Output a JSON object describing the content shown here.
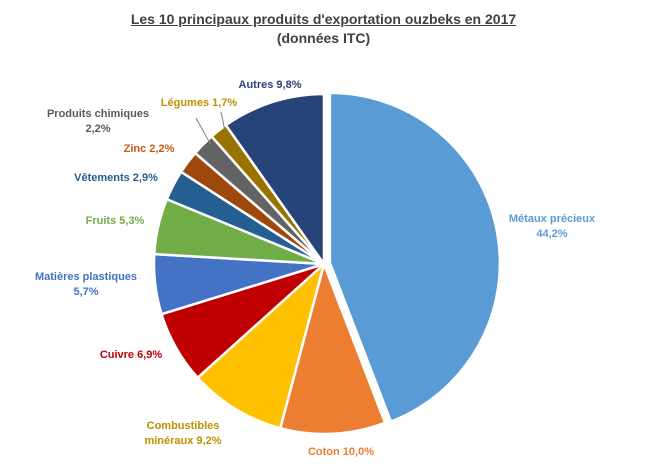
{
  "chart_data": {
    "type": "pie",
    "title": "Les 10 principaux produits d'exportation ouzbeks en 2017",
    "subtitle": "(données ITC)",
    "slices": [
      {
        "label": "Métaux précieux",
        "value": 44.2,
        "display": "44,2%",
        "color": "#5B9BD5",
        "text_color": "#5B9BD5"
      },
      {
        "label": "Coton",
        "value": 10.0,
        "display": "10,0%",
        "color": "#ED7D31",
        "text_color": "#ED7D31"
      },
      {
        "label": "Combustibles minéraux",
        "value": 9.2,
        "display": "9,2%",
        "color": "#FFC000",
        "text_color": "#BF9000"
      },
      {
        "label": "Cuivre",
        "value": 6.9,
        "display": "6,9%",
        "color": "#C00000",
        "text_color": "#C00000"
      },
      {
        "label": "Matières plastiques",
        "value": 5.7,
        "display": "5,7%",
        "color": "#4472C4",
        "text_color": "#4472C4"
      },
      {
        "label": "Fruits",
        "value": 5.3,
        "display": "5,3%",
        "color": "#70AD47",
        "text_color": "#70AD47"
      },
      {
        "label": "Vêtements",
        "value": 2.9,
        "display": "2,9%",
        "color": "#255E91",
        "text_color": "#255E91"
      },
      {
        "label": "Zinc",
        "value": 2.2,
        "display": "2,2%",
        "color": "#9E480E",
        "text_color": "#C55A11"
      },
      {
        "label": "Produits chimiques",
        "value": 2.2,
        "display": "2,2%",
        "color": "#636363",
        "text_color": "#595959"
      },
      {
        "label": "Légumes",
        "value": 1.7,
        "display": "1,7%",
        "color": "#997300",
        "text_color": "#BF9000"
      },
      {
        "label": "Autres",
        "value": 9.8,
        "display": "9,8%",
        "color": "#264478",
        "text_color": "#264478"
      }
    ]
  }
}
